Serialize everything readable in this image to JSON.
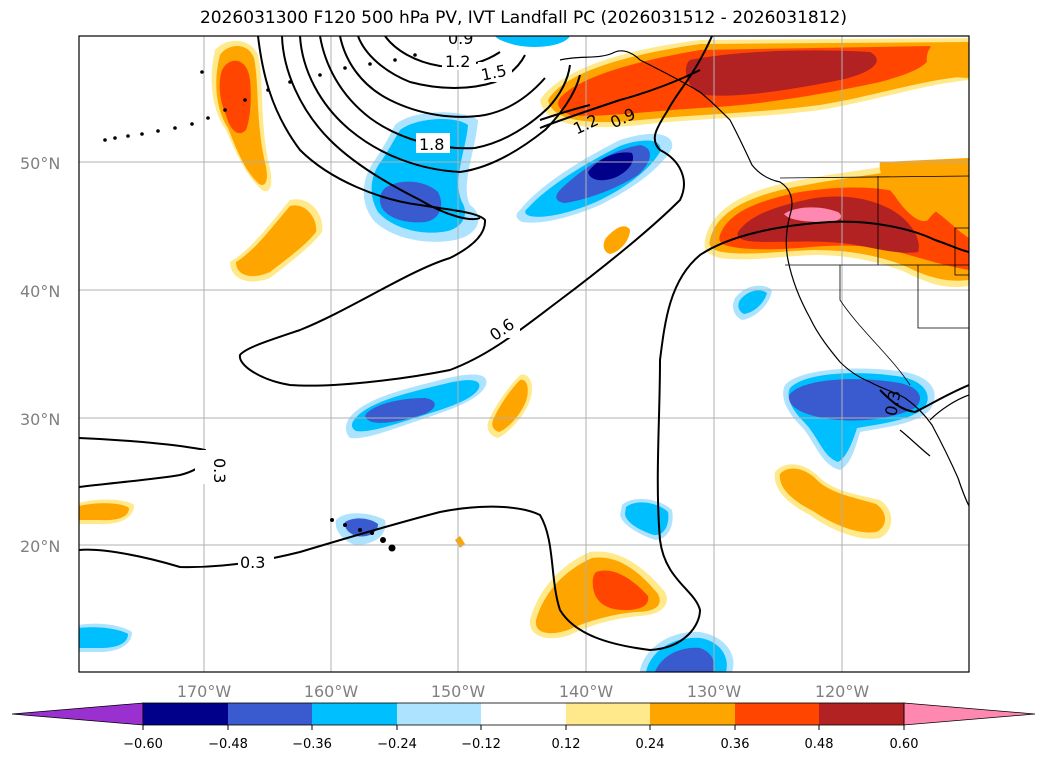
{
  "title": "2026031300 F120 500 hPa PV, IVT Landfall PC (2026031512 - 2026031812)",
  "colors": {
    "neg_060": "#9b30d0",
    "neg_048": "#00008b",
    "neg_036": "#3a5bd0",
    "neg_024": "#00bfff",
    "neg_012": "#aee3ff",
    "zero": "#ffffff",
    "pos_012": "#ffe98a",
    "pos_024": "#ffa500",
    "pos_036": "#ff4500",
    "pos_048": "#b22222",
    "pos_060": "#ff88b0"
  },
  "lat_labels": [
    "50°N",
    "40°N",
    "30°N",
    "20°N"
  ],
  "lon_labels": [
    "170°W",
    "160°W",
    "150°W",
    "140°W",
    "130°W",
    "120°W"
  ],
  "colorbar": {
    "ticks": [
      "−0.60",
      "−0.48",
      "−0.36",
      "−0.24",
      "−0.12",
      "0.12",
      "0.24",
      "0.36",
      "0.48",
      "0.60"
    ]
  },
  "contour_labels": [
    "1.2",
    "1.5",
    "1.8",
    "1.2",
    "0.9",
    "0.6",
    "0.3",
    "0.3",
    "0.3",
    "0.9"
  ]
}
